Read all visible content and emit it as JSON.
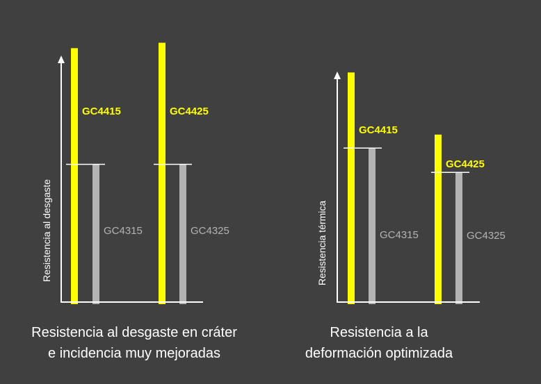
{
  "colors": {
    "background": "#404040",
    "highlight_bar": "#ffff00",
    "reference_bar": "#b3b3b3",
    "axis": "#ffffff",
    "highlight_label": "#ffff00",
    "reference_label": "#b3b3b3"
  },
  "chart_data": [
    {
      "type": "bar",
      "title": "",
      "ylabel": "Resistencia al desgaste",
      "xlabel": "",
      "ylim": [
        0,
        100
      ],
      "grid": false,
      "caption": [
        "Resistencia al desgaste en cráter",
        "e incidencia muy mejoradas"
      ],
      "groups": [
        {
          "highlight": {
            "name": "GC4415",
            "value": 94
          },
          "reference": {
            "name": "GC4315",
            "value": 51
          }
        },
        {
          "highlight": {
            "name": "GC4425",
            "value": 96
          },
          "reference": {
            "name": "GC4325",
            "value": 51
          }
        }
      ]
    },
    {
      "type": "bar",
      "title": "",
      "ylabel": "Resistencia térmica",
      "xlabel": "",
      "ylim": [
        0,
        100
      ],
      "grid": false,
      "caption": [
        "Resistencia a la",
        "deformación optimizada"
      ],
      "groups": [
        {
          "highlight": {
            "name": "GC4415",
            "value": 85
          },
          "reference": {
            "name": "GC4315",
            "value": 57
          }
        },
        {
          "highlight": {
            "name": "GC4425",
            "value": 62
          },
          "reference": {
            "name": "GC4325",
            "value": 48
          }
        }
      ]
    }
  ]
}
